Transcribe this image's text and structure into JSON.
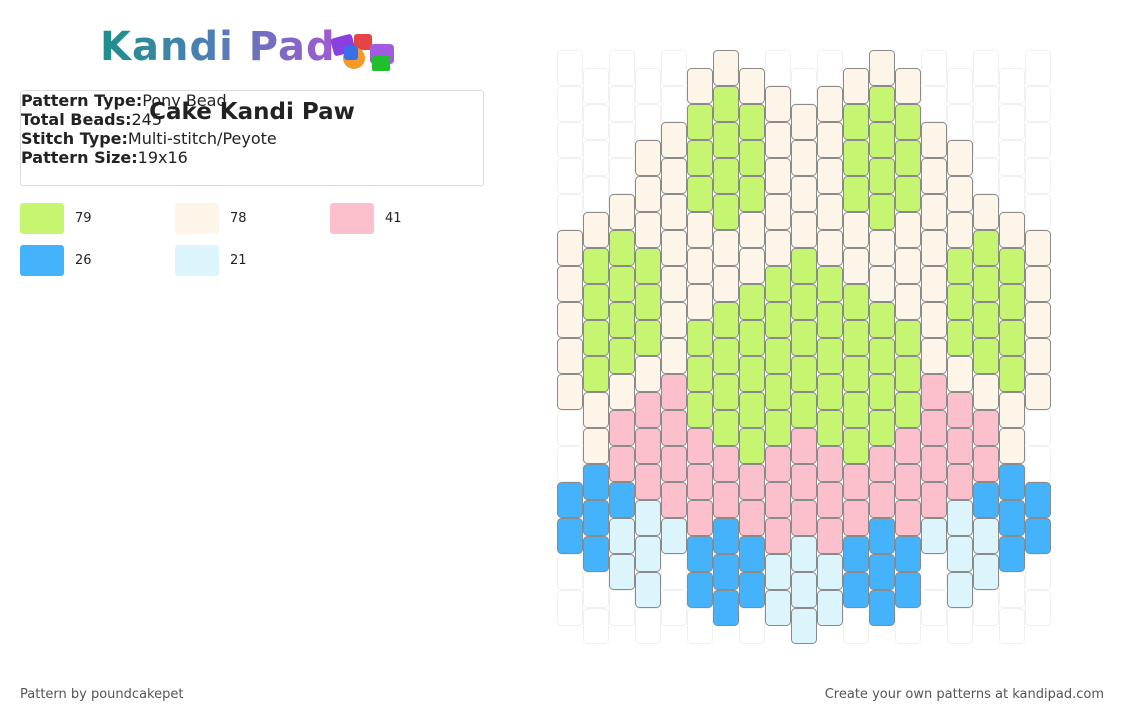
{
  "logo": "Kandi Pad",
  "info": {
    "title": "Cake Kandi Paw",
    "fields": [
      {
        "label": "Pattern Type:",
        "value": "Pony Bead"
      },
      {
        "label": "Total Beads:",
        "value": "245"
      },
      {
        "label": "Stitch Type:",
        "value": "Multi-stitch/Peyote"
      },
      {
        "label": "Pattern Size:",
        "value": "19x16"
      }
    ]
  },
  "legend": [
    {
      "color": "#c6f572",
      "count": 79
    },
    {
      "color": "#fdf5e8",
      "count": 78
    },
    {
      "color": "#fcc0cc",
      "count": 41
    },
    {
      "color": "#44b3fc",
      "count": 26
    },
    {
      "color": "#dcf5fc",
      "count": 21
    }
  ],
  "footer": {
    "credit": "Pattern by poundcakepet",
    "promo": "Create your own patterns at kandipad.com"
  }
}
